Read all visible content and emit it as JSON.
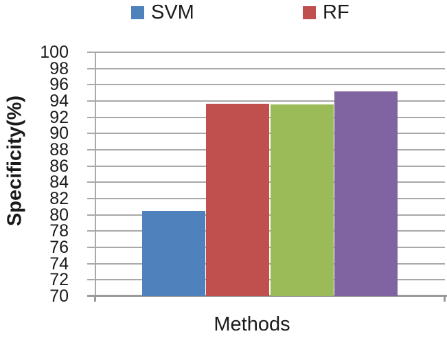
{
  "legend": [
    {
      "label": "SVM",
      "color": "#4F81BD"
    },
    {
      "label": "RF",
      "color": "#C0504D"
    }
  ],
  "chart_data": {
    "type": "bar",
    "title": "",
    "xlabel": "Methods",
    "ylabel": "Specificity(%)",
    "ylim": [
      70,
      100
    ],
    "yticks": [
      70,
      72,
      74,
      76,
      78,
      80,
      82,
      84,
      86,
      88,
      90,
      92,
      94,
      96,
      98,
      100
    ],
    "grid": true,
    "gridline_color": "#a8a8a8",
    "axis_color": "#9a9a9a",
    "legend_position": "top",
    "legend_entries": [
      "SVM",
      "RF"
    ],
    "series": [
      {
        "name": "SVM",
        "value": 80.5,
        "color": "#4F81BD"
      },
      {
        "name": "RF",
        "value": 93.7,
        "color": "#C0504D"
      },
      {
        "name": "",
        "value": 93.6,
        "color": "#9BBB59"
      },
      {
        "name": "",
        "value": 95.2,
        "color": "#8064A2"
      }
    ]
  }
}
